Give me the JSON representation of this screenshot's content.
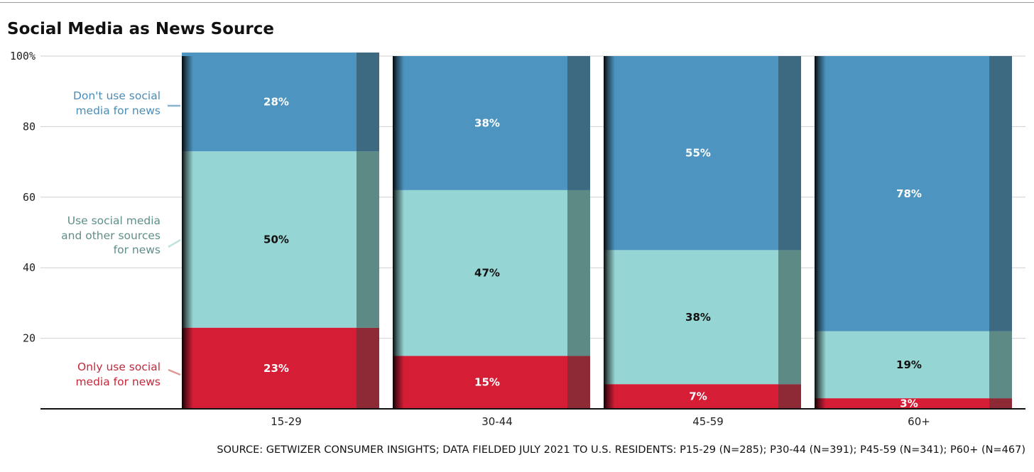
{
  "title": "Social Media as News Source",
  "source": "SOURCE: GETWIZER CONSUMER INSIGHTS; DATA FIELDED JULY 2021 TO U.S. RESIDENTS: P15-29 (N=285); P30-44 (N=391); P45-59 (N=341); P60+ (N=467)",
  "chart_data": {
    "type": "bar",
    "stacked": true,
    "title": "Social Media as News Source",
    "xlabel": "",
    "ylabel": "",
    "categories": [
      "15-29",
      "30-44",
      "45-59",
      "60+"
    ],
    "ylim": [
      0,
      100
    ],
    "yticks": [
      20,
      40,
      60,
      80,
      100
    ],
    "ytick_labels": [
      "20",
      "40",
      "60",
      "80",
      "100%"
    ],
    "grid": true,
    "legend_position": "left",
    "series": [
      {
        "name": "Only use social media for news",
        "name_lines": [
          "Only use social",
          "media for news"
        ],
        "values": [
          23,
          15,
          7,
          3
        ],
        "labels": [
          "23%",
          "15%",
          "7%",
          "3%"
        ],
        "color": "#d51e36",
        "shade": "#8d2a36",
        "label_color": "#ffffff",
        "legend_color": "#c4283b",
        "leader_color": "#e09a94"
      },
      {
        "name": "Use social media and other sources for news",
        "name_lines": [
          "Use social media",
          "and other sources",
          "for news"
        ],
        "values": [
          50,
          47,
          38,
          19
        ],
        "labels": [
          "50%",
          "47%",
          "38%",
          "19%"
        ],
        "color": "#95d5d3",
        "shade": "#5e8a86",
        "label_color": "#111111",
        "legend_color": "#5f8f89",
        "leader_color": "#bfe3e1"
      },
      {
        "name": "Don't use social media for news",
        "name_lines": [
          "Don't use social",
          "media for news"
        ],
        "values": [
          28,
          38,
          55,
          78
        ],
        "labels": [
          "28%",
          "38%",
          "55%",
          "78%"
        ],
        "color": "#4d95c0",
        "shade": "#3d6a80",
        "label_color": "#ffffff",
        "legend_color": "#4b8db8",
        "leader_color": "#8ab3cf"
      }
    ]
  }
}
